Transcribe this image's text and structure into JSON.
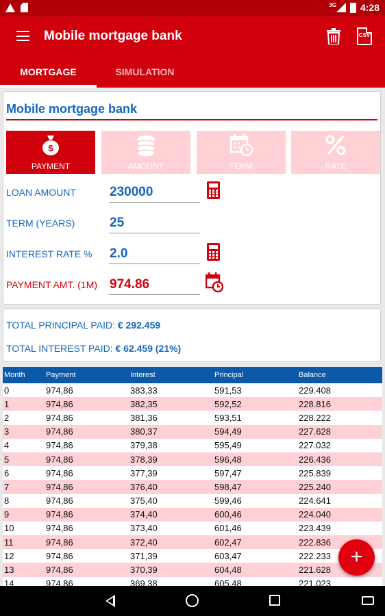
{
  "status_bar": {
    "network": "3G",
    "time": "4:28"
  },
  "app_bar": {
    "title": "Mobile mortgage bank"
  },
  "tabs": [
    {
      "label": "MORTGAGE",
      "active": true
    },
    {
      "label": "SIMULATION",
      "active": false
    }
  ],
  "calculator": {
    "title": "Mobile mortgage bank",
    "modes": [
      {
        "label": "PAYMENT",
        "icon": "money-bag-icon",
        "active": true
      },
      {
        "label": "AMOUNT",
        "icon": "coins-icon",
        "active": false
      },
      {
        "label": "TERM",
        "icon": "calendar-clock-icon",
        "active": false
      },
      {
        "label": "RATE",
        "icon": "percent-icon",
        "active": false
      }
    ],
    "fields": {
      "loan_amount_label": "LOAN AMOUNT",
      "loan_amount_value": "230000",
      "term_label": "TERM (YEARS)",
      "term_value": "25",
      "interest_label": "INTEREST RATE %",
      "interest_value": "2.0",
      "payment_label": "PAYMENT AMT. (1M)",
      "payment_value": "974.86"
    }
  },
  "totals": {
    "principal_label": "TOTAL PRINCIPAL PAID:",
    "principal_value": "€ 292.459",
    "interest_label": "TOTAL INTEREST PAID:",
    "interest_value": "€ 62.459 (21%)"
  },
  "table": {
    "headers": [
      "Month",
      "Payment",
      "Interest",
      "Principal",
      "Balance"
    ],
    "rows": [
      [
        "0",
        "974,86",
        "383,33",
        "591,53",
        "229.408"
      ],
      [
        "1",
        "974,86",
        "382,35",
        "592,52",
        "228.816"
      ],
      [
        "2",
        "974,86",
        "381,36",
        "593,51",
        "228.222"
      ],
      [
        "3",
        "974,86",
        "380,37",
        "594,49",
        "227.628"
      ],
      [
        "4",
        "974,86",
        "379,38",
        "595,49",
        "227.032"
      ],
      [
        "5",
        "974,86",
        "378,39",
        "596,48",
        "226.436"
      ],
      [
        "6",
        "974,86",
        "377,39",
        "597,47",
        "225.839"
      ],
      [
        "7",
        "974,86",
        "376,40",
        "598,47",
        "225.240"
      ],
      [
        "8",
        "974,86",
        "375,40",
        "599,46",
        "224.641"
      ],
      [
        "9",
        "974,86",
        "374,40",
        "600,46",
        "224.040"
      ],
      [
        "10",
        "974,86",
        "373,40",
        "601,46",
        "223.439"
      ],
      [
        "11",
        "974,86",
        "372,40",
        "602,47",
        "222.836"
      ],
      [
        "12",
        "974,86",
        "371,39",
        "603,47",
        "222.233"
      ],
      [
        "13",
        "974,86",
        "370,39",
        "604,48",
        "221.628"
      ],
      [
        "14",
        "974,86",
        "369,38",
        "605,48",
        "221.023"
      ]
    ]
  },
  "fab": {
    "icon": "plus-icon",
    "label": "+"
  },
  "colors": {
    "primary": "#d0000d",
    "status_bar": "#b00007",
    "accent_blue": "#1565c0",
    "table_header": "#0b59a7",
    "row_alt": "#ffd0d5",
    "mode_inactive": "#ffd0d4"
  }
}
